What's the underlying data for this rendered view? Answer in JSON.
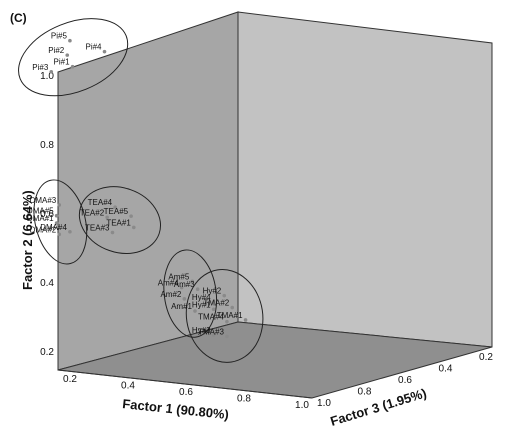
{
  "panel_label": "(C)",
  "chart_data": {
    "type": "scatter",
    "projection": "3d",
    "axes": {
      "x": {
        "label": "Factor 1 (90.80%)",
        "ticks": [
          "0.2",
          "0.4",
          "0.6",
          "0.8",
          "1.0"
        ],
        "range": [
          0.2,
          1.0
        ]
      },
      "y": {
        "label": "Factor 2 (6.64%)",
        "ticks": [
          "0.2",
          "0.4",
          "0.6",
          "0.8",
          "1.0"
        ],
        "range": [
          0.2,
          1.0
        ]
      },
      "z": {
        "label": "Factor 3 (1.95%)",
        "ticks": [
          "0.2",
          "0.4",
          "0.6",
          "0.8",
          "1.0"
        ],
        "range": [
          0.2,
          1.0
        ]
      }
    },
    "groups": [
      {
        "points": [
          {
            "label": "Pi#5",
            "x": 1.0,
            "y": 0.97,
            "z": 0.95
          },
          {
            "label": "Pi#4",
            "x": 1.0,
            "y": 0.95,
            "z": 0.82
          },
          {
            "label": "Pi#2",
            "x": 1.0,
            "y": 0.93,
            "z": 0.96
          },
          {
            "label": "Pi#1",
            "x": 1.0,
            "y": 0.9,
            "z": 0.94
          },
          {
            "label": "Pi#3",
            "x": 1.0,
            "y": 0.88,
            "z": 1.02
          }
        ]
      },
      {
        "points": [
          {
            "label": "DMA#3",
            "x": 1.0,
            "y": 0.52,
            "z": 0.99
          },
          {
            "label": "DMA#5",
            "x": 1.0,
            "y": 0.49,
            "z": 1.0
          },
          {
            "label": "DMA#1",
            "x": 1.0,
            "y": 0.47,
            "z": 1.0
          },
          {
            "label": "DMA#4",
            "x": 1.0,
            "y": 0.45,
            "z": 0.95
          },
          {
            "label": "DMA#2",
            "x": 1.0,
            "y": 0.44,
            "z": 0.99
          }
        ]
      },
      {
        "points": [
          {
            "label": "TEA#4",
            "x": 1.0,
            "y": 0.53,
            "z": 0.78
          },
          {
            "label": "TEA#5",
            "x": 1.0,
            "y": 0.51,
            "z": 0.72
          },
          {
            "label": "TEA#2",
            "x": 1.0,
            "y": 0.5,
            "z": 0.81
          },
          {
            "label": "TEA#1",
            "x": 1.0,
            "y": 0.48,
            "z": 0.71
          },
          {
            "label": "TEA#3",
            "x": 1.0,
            "y": 0.46,
            "z": 0.79
          }
        ]
      },
      {
        "points": [
          {
            "label": "Am#5",
            "x": 1.0,
            "y": 0.35,
            "z": 0.49
          },
          {
            "label": "Am#3",
            "x": 1.0,
            "y": 0.33,
            "z": 0.47
          },
          {
            "label": "Am#4",
            "x": 1.0,
            "y": 0.33,
            "z": 0.53
          },
          {
            "label": "Am#2",
            "x": 1.0,
            "y": 0.3,
            "z": 0.52
          },
          {
            "label": "Am#1",
            "x": 1.0,
            "y": 0.27,
            "z": 0.48
          }
        ]
      },
      {
        "points": [
          {
            "label": "Hy#2",
            "x": 1.0,
            "y": 0.32,
            "z": 0.37
          },
          {
            "label": "Hy#4",
            "x": 1.0,
            "y": 0.3,
            "z": 0.41
          },
          {
            "label": "TMA#2",
            "x": 1.0,
            "y": 0.29,
            "z": 0.34
          },
          {
            "label": "Hy#1",
            "x": 1.0,
            "y": 0.28,
            "z": 0.41
          },
          {
            "label": "TMA#1",
            "x": 1.0,
            "y": 0.26,
            "z": 0.29
          },
          {
            "label": "TMA#4",
            "x": 1.0,
            "y": 0.25,
            "z": 0.36
          },
          {
            "label": "Hy#3",
            "x": 1.0,
            "y": 0.21,
            "z": 0.41
          },
          {
            "label": "TMA#3",
            "x": 1.0,
            "y": 0.21,
            "z": 0.36
          }
        ]
      }
    ],
    "colors": {
      "left_wall": "#a6a6a6",
      "back_wall": "#c2c2c2",
      "floor": "#8f8f8f",
      "point": "#8a8a8a",
      "ellipse": "#222222"
    }
  }
}
